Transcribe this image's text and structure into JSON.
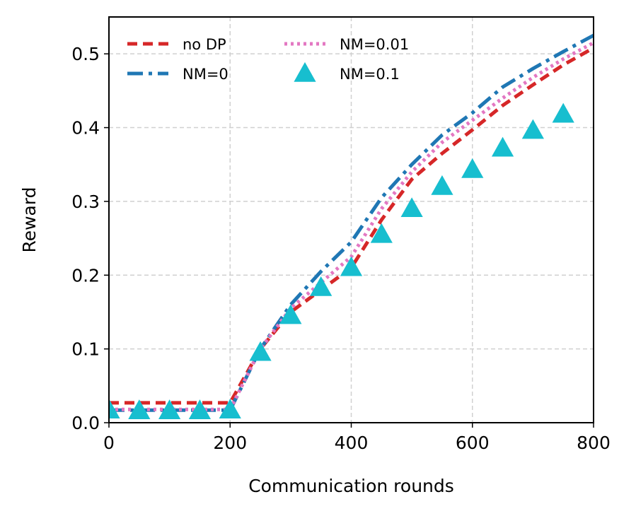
{
  "chart_data": {
    "type": "line",
    "title": "",
    "xlabel": "Communication rounds",
    "ylabel": "Reward",
    "xlim": [
      0,
      800
    ],
    "ylim": [
      0,
      0.55
    ],
    "xticks": [
      0,
      200,
      400,
      600,
      800
    ],
    "yticks": [
      0.0,
      0.1,
      0.2,
      0.3,
      0.4,
      0.5
    ],
    "xtick_labels": [
      "0",
      "200",
      "400",
      "600",
      "800"
    ],
    "ytick_labels": [
      "0.0",
      "0.1",
      "0.2",
      "0.3",
      "0.4",
      "0.5"
    ],
    "grid": true,
    "legend_position": "top-left",
    "series": [
      {
        "name": "no DP",
        "style": "dashed",
        "color": "#d62728",
        "x": [
          0,
          50,
          100,
          150,
          200,
          250,
          300,
          350,
          400,
          450,
          500,
          550,
          600,
          650,
          700,
          750,
          800
        ],
        "y": [
          0.027,
          0.027,
          0.027,
          0.027,
          0.027,
          0.1,
          0.15,
          0.18,
          0.21,
          0.275,
          0.33,
          0.365,
          0.397,
          0.43,
          0.458,
          0.485,
          0.508
        ]
      },
      {
        "name": "NM=0",
        "style": "dashdot",
        "color": "#1f77b4",
        "x": [
          0,
          50,
          100,
          150,
          200,
          250,
          300,
          350,
          400,
          450,
          500,
          550,
          600,
          650,
          700,
          750,
          800
        ],
        "y": [
          0.017,
          0.017,
          0.017,
          0.017,
          0.017,
          0.1,
          0.16,
          0.205,
          0.245,
          0.305,
          0.35,
          0.39,
          0.42,
          0.455,
          0.48,
          0.503,
          0.525
        ]
      },
      {
        "name": "NM=0.01",
        "style": "dotted",
        "color": "#e377c2",
        "x": [
          0,
          50,
          100,
          150,
          200,
          250,
          300,
          350,
          400,
          450,
          500,
          550,
          600,
          650,
          700,
          750,
          800
        ],
        "y": [
          0.018,
          0.018,
          0.018,
          0.018,
          0.018,
          0.1,
          0.155,
          0.19,
          0.225,
          0.29,
          0.34,
          0.38,
          0.41,
          0.44,
          0.468,
          0.493,
          0.515
        ]
      },
      {
        "name": "NM=0.1",
        "style": "marker-triangle",
        "color": "#17becf",
        "x": [
          0,
          50,
          100,
          150,
          200,
          250,
          300,
          350,
          400,
          450,
          500,
          550,
          600,
          650,
          700,
          750
        ],
        "y": [
          0.017,
          0.016,
          0.016,
          0.016,
          0.017,
          0.095,
          0.145,
          0.183,
          0.21,
          0.255,
          0.29,
          0.32,
          0.343,
          0.372,
          0.396,
          0.418
        ]
      }
    ]
  }
}
